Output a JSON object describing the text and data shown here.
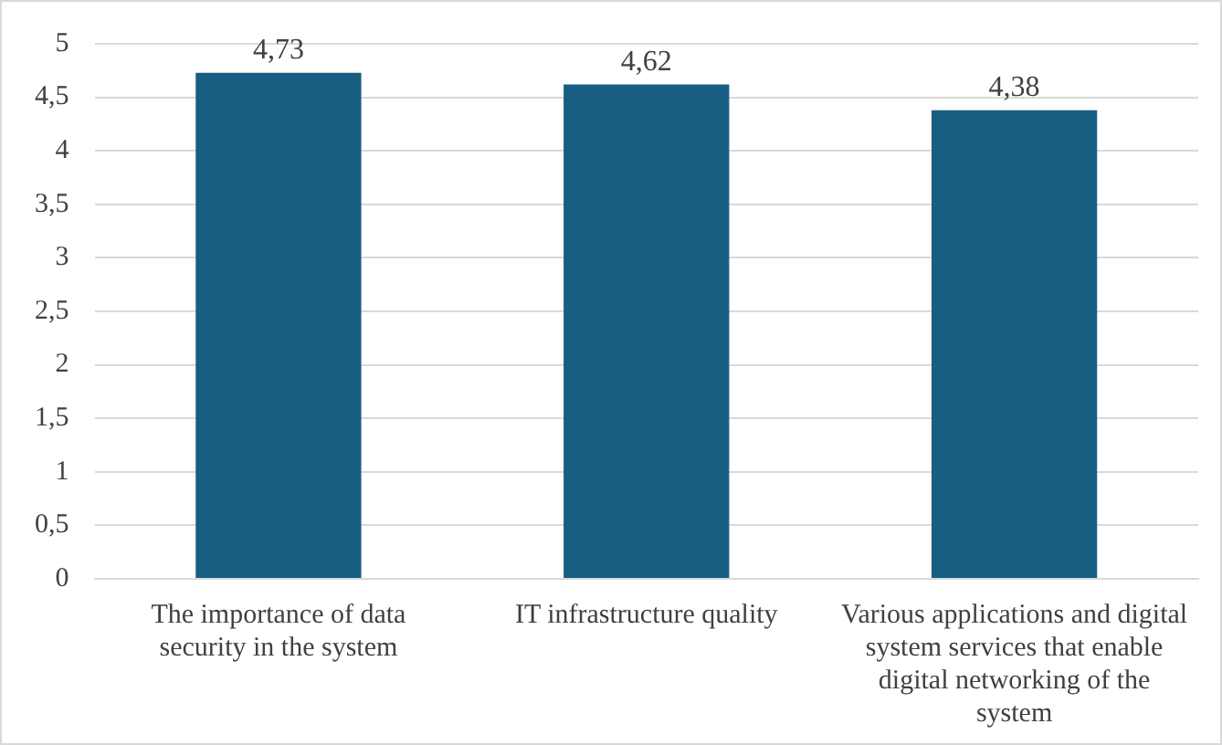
{
  "chart_data": {
    "type": "bar",
    "categories": [
      "The importance of data security in the system",
      "IT infrastructure quality",
      "Various applications and digital system services that enable digital networking of the system"
    ],
    "values": [
      4.73,
      4.62,
      4.38
    ],
    "value_labels": [
      "4,73",
      "4,62",
      "4,38"
    ],
    "color": "#175e82",
    "ylim": [
      0,
      5
    ],
    "yticks": [
      {
        "value": 0,
        "label": "0"
      },
      {
        "value": 0.5,
        "label": "0,5"
      },
      {
        "value": 1,
        "label": "1"
      },
      {
        "value": 1.5,
        "label": "1,5"
      },
      {
        "value": 2,
        "label": "2"
      },
      {
        "value": 2.5,
        "label": "2,5"
      },
      {
        "value": 3,
        "label": "3"
      },
      {
        "value": 3.5,
        "label": "3,5"
      },
      {
        "value": 4,
        "label": "4"
      },
      {
        "value": 4.5,
        "label": "4,5"
      },
      {
        "value": 5,
        "label": "5"
      }
    ],
    "grid": "y"
  }
}
